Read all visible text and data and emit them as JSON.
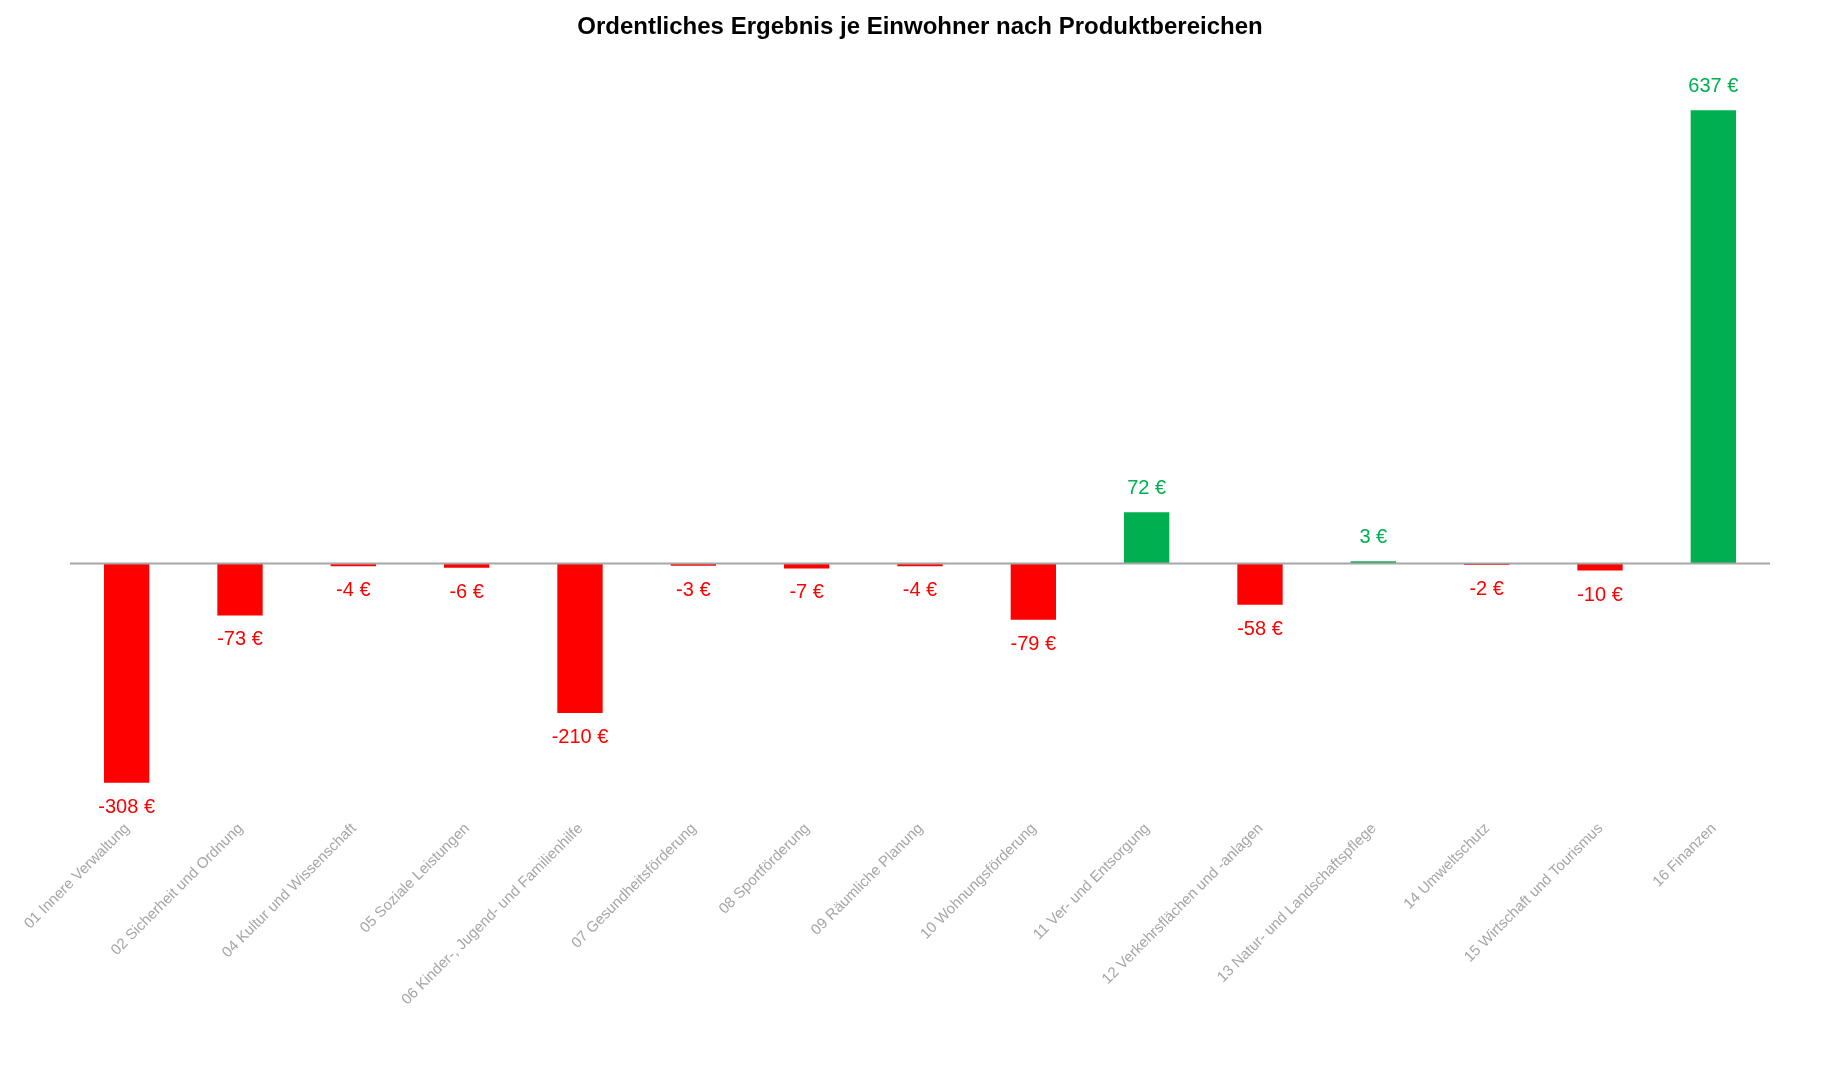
{
  "chart_data": {
    "type": "bar",
    "title": "Ordentliches Ergebnis je Einwohner nach Produktbereichen",
    "categories": [
      "01 Innere Verwaltung",
      "02 Sicherheit und Ordnung",
      "04 Kultur und Wissenschaft",
      "05 Soziale Leistungen",
      "06 Kinder-, Jugend- und Familienhilfe",
      "07 Gesundheitsförderung",
      "08 Sportförderung",
      "09 Räumliche Planung",
      "10 Wohnungsförderung",
      "11 Ver- und Entsorgung",
      "12 Verkehrsflächen und -anlagen",
      "13 Natur- und Landschaftspflege",
      "14 Umweltschutz",
      "15 Wirtschaft und Tourismus",
      "16 Finanzen"
    ],
    "values": [
      -308,
      -73,
      -4,
      -6,
      -210,
      -3,
      -7,
      -4,
      -79,
      72,
      -58,
      3,
      -2,
      -10,
      637
    ],
    "colors": [
      "#ff0000",
      "#ff0000",
      "#ff0000",
      "#ff0000",
      "#ff0000",
      "#ff0000",
      "#ff0000",
      "#ff0000",
      "#ff0000",
      "#00b050",
      "#ff0000",
      "#00b050",
      "#ff0000",
      "#ff0000",
      "#00b050"
    ],
    "value_labels": [
      "-308 €",
      "-73 €",
      "-4 €",
      "-6 €",
      "-210 €",
      "-3 €",
      "-7 €",
      "-4 €",
      "-79 €",
      "72 €",
      "-58 €",
      "3 €",
      "-2 €",
      "-10 €",
      "637 €"
    ],
    "grid": false
  }
}
